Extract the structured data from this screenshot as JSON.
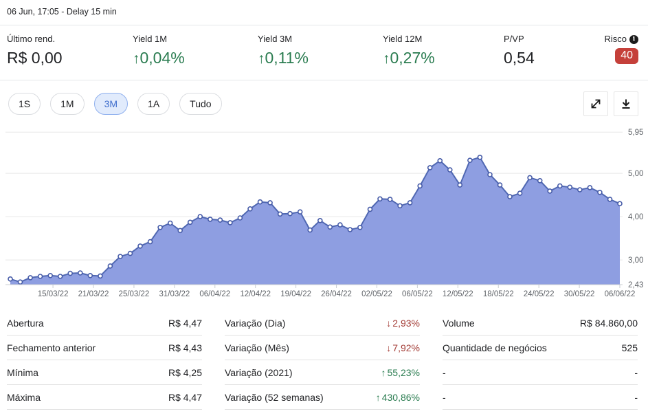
{
  "header": {
    "timestamp": "06 Jun, 17:05 - Delay 15 min"
  },
  "colors": {
    "positive": "#2a7c50",
    "negative": "#a43e38",
    "risk_badge": "#c5403a",
    "accent": "#3e6dcc",
    "chip_selected_bg": "#e1ebfc"
  },
  "glyphs": {
    "up": "↑",
    "down": "↓",
    "info": "i"
  },
  "stats": [
    {
      "label": "Último rend.",
      "value": "R$ 0,00",
      "tone": "plain"
    },
    {
      "label": "Yield 1M",
      "value": "0,04%",
      "arrow": "up",
      "tone": "positive"
    },
    {
      "label": "Yield 3M",
      "value": "0,11%",
      "arrow": "up",
      "tone": "positive"
    },
    {
      "label": "Yield 12M",
      "value": "0,27%",
      "arrow": "up",
      "tone": "positive"
    },
    {
      "label": "P/VP",
      "value": "0,54",
      "tone": "plain"
    },
    {
      "label": "Risco",
      "value": "40",
      "tone": "badge",
      "has_info": true
    }
  ],
  "ranges": [
    {
      "label": "1S",
      "selected": false
    },
    {
      "label": "1M",
      "selected": false
    },
    {
      "label": "3M",
      "selected": true
    },
    {
      "label": "1A",
      "selected": false
    },
    {
      "label": "Tudo",
      "selected": false
    }
  ],
  "chart_data": {
    "type": "area",
    "series": [
      {
        "name": "cota-price",
        "values": [
          2.56,
          2.49,
          2.59,
          2.62,
          2.64,
          2.62,
          2.69,
          2.7,
          2.64,
          2.63,
          2.86,
          3.08,
          3.15,
          3.32,
          3.42,
          3.75,
          3.85,
          3.68,
          3.87,
          4.0,
          3.94,
          3.92,
          3.86,
          3.97,
          4.18,
          4.34,
          4.32,
          4.06,
          4.07,
          4.11,
          3.69,
          3.91,
          3.76,
          3.81,
          3.7,
          3.75,
          4.17,
          4.41,
          4.4,
          4.25,
          4.32,
          4.71,
          5.13,
          5.29,
          5.08,
          4.73,
          5.3,
          5.37,
          4.97,
          4.73,
          4.46,
          4.54,
          4.9,
          4.83,
          4.59,
          4.71,
          4.68,
          4.62,
          4.67,
          4.56,
          4.4,
          4.3
        ]
      }
    ],
    "x_tick_labels": [
      "15/03/22",
      "21/03/22",
      "25/03/22",
      "31/03/22",
      "06/04/22",
      "12/04/22",
      "19/04/22",
      "26/04/22",
      "02/05/22",
      "06/05/22",
      "12/05/22",
      "18/05/22",
      "24/05/22",
      "30/05/22",
      "06/06/22"
    ],
    "y_tick_values": [
      5.95,
      5.0,
      4.0,
      3.0,
      2.43
    ],
    "y_tick_labels": [
      "5,95",
      "5,00",
      "4,00",
      "3,00",
      "2,43"
    ],
    "ylim": [
      2.43,
      5.95
    ],
    "grid": true,
    "legend": "none",
    "colors": {
      "fill": "#8e9ee1",
      "line": "#5068b2",
      "marker_stroke": "#475ca8",
      "marker_fill": "#ffffff",
      "grid": "#e8e8e8",
      "axis_line": "#c9cdd2",
      "tick_text": "#5f6368"
    }
  },
  "table": {
    "columns": [
      {
        "rows": [
          {
            "label": "Abertura",
            "value": "R$ 4,47",
            "tone": "plain"
          },
          {
            "label": "Fechamento anterior",
            "value": "R$ 4,43",
            "tone": "plain"
          },
          {
            "label": "Mínima",
            "value": "R$ 4,25",
            "tone": "plain"
          },
          {
            "label": "Máxima",
            "value": "R$ 4,47",
            "tone": "plain"
          }
        ]
      },
      {
        "rows": [
          {
            "label": "Variação (Dia)",
            "value": "2,93%",
            "arrow": "down",
            "tone": "negative"
          },
          {
            "label": "Variação (Mês)",
            "value": "7,92%",
            "arrow": "down",
            "tone": "negative"
          },
          {
            "label": "Variação (2021)",
            "value": "55,23%",
            "arrow": "up",
            "tone": "positive"
          },
          {
            "label": "Variação (52 semanas)",
            "value": "430,86%",
            "arrow": "up",
            "tone": "positive"
          }
        ]
      },
      {
        "rows": [
          {
            "label": "Volume",
            "value": "R$ 84.860,00",
            "tone": "plain"
          },
          {
            "label": "Quantidade de negócios",
            "value": "525",
            "tone": "plain"
          },
          {
            "label": "-",
            "value": "-",
            "tone": "plain"
          },
          {
            "label": "-",
            "value": "-",
            "tone": "plain"
          }
        ]
      }
    ]
  }
}
